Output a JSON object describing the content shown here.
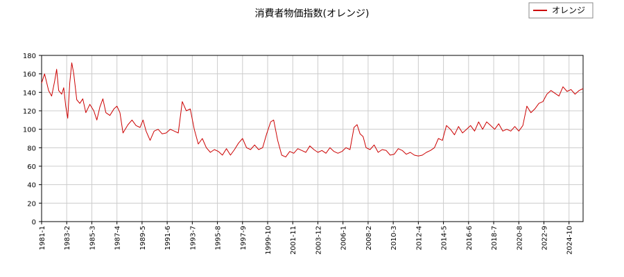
{
  "chart_data": {
    "type": "line",
    "title": "消費者物価指数(オレンジ)",
    "xlabel": "",
    "ylabel": "",
    "ylim": [
      0,
      180
    ],
    "yticks": [
      0,
      20,
      40,
      60,
      80,
      100,
      120,
      140,
      160,
      180
    ],
    "grid": true,
    "legend_position": "top-right",
    "x_start": "1981-1",
    "x_end": "2025-12",
    "xtick_labels": [
      "1981-1",
      "1983-2",
      "1985-3",
      "1987-4",
      "1989-5",
      "1991-6",
      "1993-7",
      "1995-8",
      "1997-9",
      "1999-10",
      "2001-11",
      "2003-12",
      "2006-1",
      "2008-2",
      "2010-3",
      "2012-4",
      "2014-5",
      "2016-6",
      "2018-7",
      "2020-8",
      "2022-9",
      "2024-10"
    ],
    "series": [
      {
        "name": "オレンジ",
        "color": "#cc0000",
        "points": [
          [
            "1981-1",
            150
          ],
          [
            "1981-4",
            160
          ],
          [
            "1981-8",
            142
          ],
          [
            "1981-11",
            136
          ],
          [
            "1982-2",
            152
          ],
          [
            "1982-4",
            165
          ],
          [
            "1982-6",
            142
          ],
          [
            "1982-9",
            138
          ],
          [
            "1982-11",
            145
          ],
          [
            "1983-1",
            125
          ],
          [
            "1983-3",
            112
          ],
          [
            "1983-5",
            150
          ],
          [
            "1983-7",
            172
          ],
          [
            "1983-9",
            160
          ],
          [
            "1983-12",
            132
          ],
          [
            "1984-3",
            128
          ],
          [
            "1984-6",
            133
          ],
          [
            "1984-9",
            118
          ],
          [
            "1985-1",
            127
          ],
          [
            "1985-5",
            120
          ],
          [
            "1985-8",
            110
          ],
          [
            "1985-11",
            124
          ],
          [
            "1986-2",
            133
          ],
          [
            "1986-5",
            118
          ],
          [
            "1986-9",
            115
          ],
          [
            "1987-1",
            122
          ],
          [
            "1987-4",
            125
          ],
          [
            "1987-7",
            118
          ],
          [
            "1987-10",
            96
          ],
          [
            "1988-3",
            105
          ],
          [
            "1988-7",
            110
          ],
          [
            "1988-11",
            104
          ],
          [
            "1989-3",
            102
          ],
          [
            "1989-6",
            110
          ],
          [
            "1989-9",
            98
          ],
          [
            "1990-1",
            88
          ],
          [
            "1990-5",
            98
          ],
          [
            "1990-9",
            100
          ],
          [
            "1991-1",
            95
          ],
          [
            "1991-5",
            96
          ],
          [
            "1991-9",
            100
          ],
          [
            "1992-1",
            98
          ],
          [
            "1992-5",
            96
          ],
          [
            "1992-9",
            130
          ],
          [
            "1993-1",
            120
          ],
          [
            "1993-5",
            122
          ],
          [
            "1993-9",
            100
          ],
          [
            "1994-1",
            84
          ],
          [
            "1994-5",
            90
          ],
          [
            "1994-9",
            80
          ],
          [
            "1995-1",
            75
          ],
          [
            "1995-5",
            78
          ],
          [
            "1995-9",
            76
          ],
          [
            "1996-1",
            72
          ],
          [
            "1996-5",
            79
          ],
          [
            "1996-9",
            72
          ],
          [
            "1997-1",
            78
          ],
          [
            "1997-5",
            85
          ],
          [
            "1997-9",
            90
          ],
          [
            "1998-1",
            80
          ],
          [
            "1998-5",
            78
          ],
          [
            "1998-9",
            83
          ],
          [
            "1999-1",
            78
          ],
          [
            "1999-5",
            80
          ],
          [
            "1999-9",
            95
          ],
          [
            "2000-1",
            108
          ],
          [
            "2000-4",
            110
          ],
          [
            "2000-8",
            88
          ],
          [
            "2000-12",
            72
          ],
          [
            "2001-4",
            70
          ],
          [
            "2001-8",
            76
          ],
          [
            "2001-12",
            74
          ],
          [
            "2002-4",
            79
          ],
          [
            "2002-8",
            77
          ],
          [
            "2002-12",
            75
          ],
          [
            "2003-4",
            82
          ],
          [
            "2003-8",
            78
          ],
          [
            "2003-12",
            75
          ],
          [
            "2004-4",
            77
          ],
          [
            "2004-8",
            74
          ],
          [
            "2004-12",
            80
          ],
          [
            "2005-4",
            76
          ],
          [
            "2005-8",
            74
          ],
          [
            "2005-12",
            76
          ],
          [
            "2006-4",
            80
          ],
          [
            "2006-8",
            78
          ],
          [
            "2006-12",
            102
          ],
          [
            "2007-3",
            105
          ],
          [
            "2007-6",
            95
          ],
          [
            "2007-9",
            92
          ],
          [
            "2007-12",
            80
          ],
          [
            "2008-4",
            78
          ],
          [
            "2008-8",
            83
          ],
          [
            "2008-12",
            75
          ],
          [
            "2009-4",
            78
          ],
          [
            "2009-8",
            77
          ],
          [
            "2009-12",
            72
          ],
          [
            "2010-4",
            73
          ],
          [
            "2010-8",
            79
          ],
          [
            "2010-12",
            77
          ],
          [
            "2011-4",
            73
          ],
          [
            "2011-8",
            75
          ],
          [
            "2011-12",
            72
          ],
          [
            "2012-4",
            71
          ],
          [
            "2012-8",
            72
          ],
          [
            "2012-12",
            75
          ],
          [
            "2013-4",
            77
          ],
          [
            "2013-8",
            80
          ],
          [
            "2013-12",
            90
          ],
          [
            "2014-4",
            88
          ],
          [
            "2014-8",
            104
          ],
          [
            "2014-12",
            100
          ],
          [
            "2015-4",
            94
          ],
          [
            "2015-8",
            103
          ],
          [
            "2015-12",
            96
          ],
          [
            "2016-4",
            100
          ],
          [
            "2016-8",
            104
          ],
          [
            "2016-12",
            98
          ],
          [
            "2017-4",
            108
          ],
          [
            "2017-8",
            100
          ],
          [
            "2017-12",
            108
          ],
          [
            "2018-4",
            104
          ],
          [
            "2018-8",
            100
          ],
          [
            "2018-12",
            106
          ],
          [
            "2019-4",
            98
          ],
          [
            "2019-8",
            100
          ],
          [
            "2019-12",
            98
          ],
          [
            "2020-4",
            103
          ],
          [
            "2020-8",
            98
          ],
          [
            "2020-12",
            104
          ],
          [
            "2021-4",
            125
          ],
          [
            "2021-8",
            118
          ],
          [
            "2021-12",
            122
          ],
          [
            "2022-4",
            128
          ],
          [
            "2022-8",
            130
          ],
          [
            "2022-12",
            138
          ],
          [
            "2023-4",
            142
          ],
          [
            "2023-8",
            139
          ],
          [
            "2023-12",
            136
          ],
          [
            "2024-4",
            146
          ],
          [
            "2024-8",
            141
          ],
          [
            "2024-12",
            143
          ],
          [
            "2025-4",
            138
          ],
          [
            "2025-8",
            142
          ],
          [
            "2025-12",
            144
          ]
        ]
      }
    ]
  }
}
